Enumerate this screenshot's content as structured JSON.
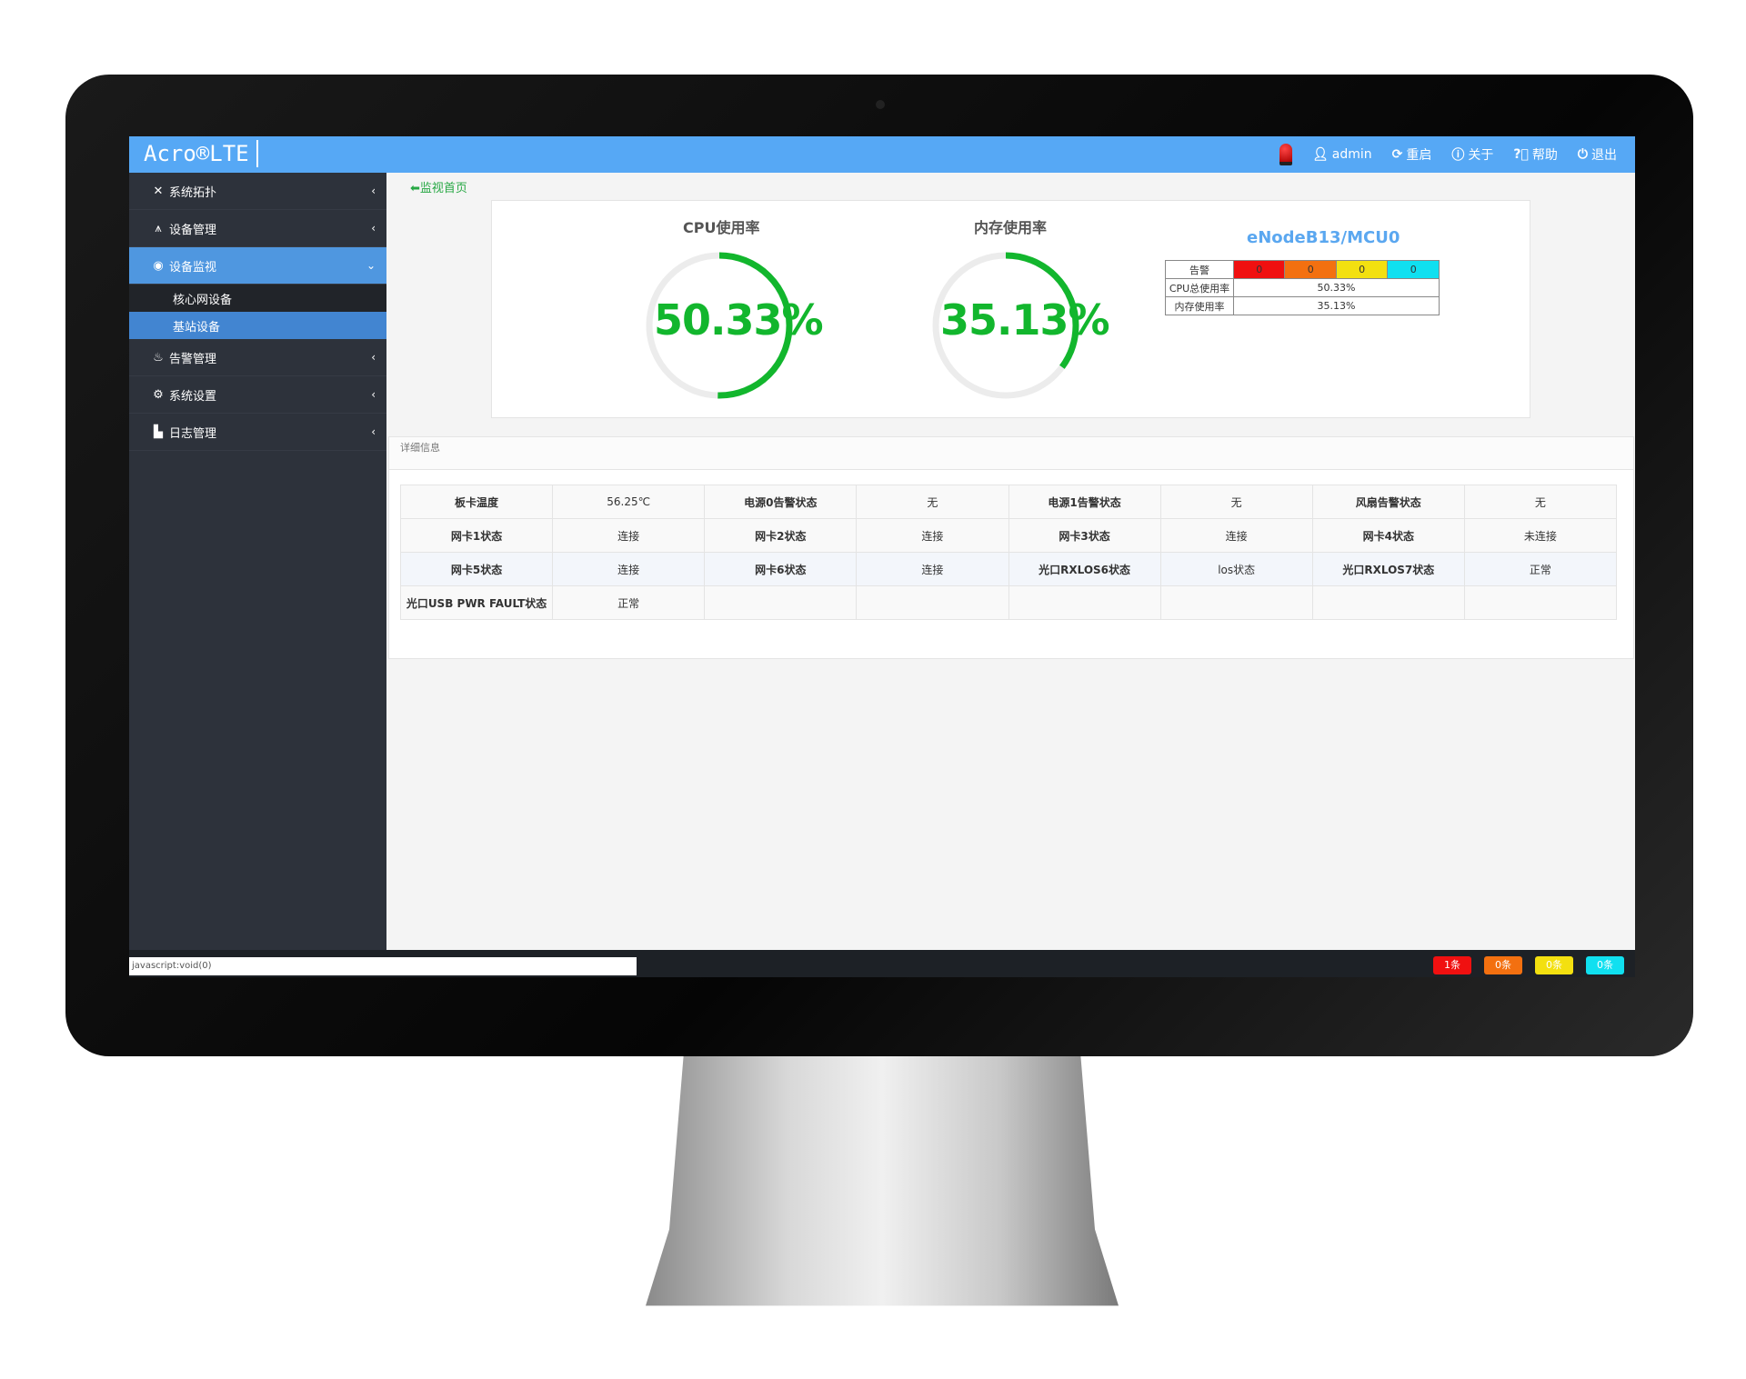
{
  "app": {
    "logo": "Acro®LTE"
  },
  "header": {
    "user": "admin",
    "restart": "重启",
    "about": "关于",
    "help": "帮助",
    "logout": "退出"
  },
  "sidebar": {
    "items": [
      {
        "label": "系统拓扑",
        "icon": "topology-icon"
      },
      {
        "label": "设备管理",
        "icon": "sitemap-icon"
      },
      {
        "label": "设备监视",
        "icon": "eye-icon",
        "active": true,
        "children": [
          {
            "label": "核心网设备"
          },
          {
            "label": "基站设备",
            "active": true
          }
        ]
      },
      {
        "label": "告警管理",
        "icon": "alarm-icon"
      },
      {
        "label": "系统设置",
        "icon": "gear-icon"
      },
      {
        "label": "日志管理",
        "icon": "bar-chart-icon"
      }
    ]
  },
  "breadcrumb": "监视首页",
  "gauges": [
    {
      "title": "CPU使用率",
      "value": "50.33%",
      "percent": 50.33
    },
    {
      "title": "内存使用率",
      "value": "35.13%",
      "percent": 35.13
    }
  ],
  "gauge_color": "#12b62d",
  "enb": {
    "title": "eNodeB13/MCU0",
    "alarm_label": "告警",
    "alarms": [
      {
        "count": "0",
        "color": "#f01010"
      },
      {
        "count": "0",
        "color": "#f37010"
      },
      {
        "count": "0",
        "color": "#f3e010"
      },
      {
        "count": "0",
        "color": "#10e0f0"
      }
    ],
    "cpu_label": "CPU总使用率",
    "cpu": "50.33%",
    "mem_label": "内存使用率",
    "mem": "35.13%"
  },
  "details": {
    "title": "详细信息",
    "rows": [
      [
        "板卡温度",
        "56.25℃",
        "电源0告警状态",
        "无",
        "电源1告警状态",
        "无",
        "风扇告警状态",
        "无"
      ],
      [
        "网卡1状态",
        "连接",
        "网卡2状态",
        "连接",
        "网卡3状态",
        "连接",
        "网卡4状态",
        "未连接"
      ],
      [
        "网卡5状态",
        "连接",
        "网卡6状态",
        "连接",
        "光口RXLOS6状态",
        "los状态",
        "光口RXLOS7状态",
        "正常"
      ],
      [
        "光口USB PWR FAULT状态",
        "正常",
        "",
        "",
        "",
        "",
        "",
        ""
      ]
    ]
  },
  "status_bar": "javascript:void(0)",
  "footer_badges": [
    {
      "label": "1条",
      "color": "#f01010"
    },
    {
      "label": "0条",
      "color": "#f37010"
    },
    {
      "label": "0条",
      "color": "#f3e010"
    },
    {
      "label": "0条",
      "color": "#10e0f0"
    }
  ]
}
